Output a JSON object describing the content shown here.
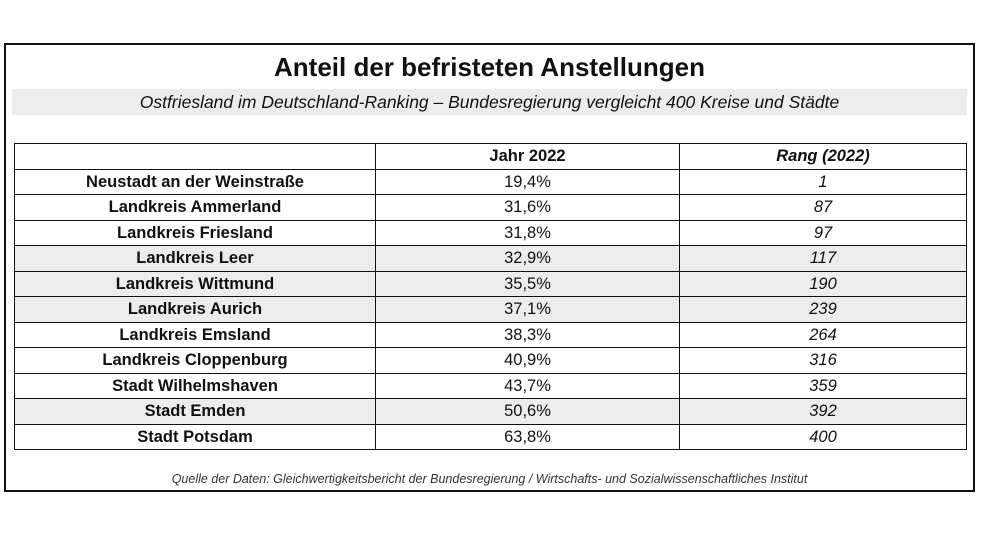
{
  "document": {
    "title": "Anteil der befristeten Anstellungen",
    "subtitle": "Ostfriesland im Deutschland-Ranking – Bundesregierung vergleicht 400 Kreise und Städte",
    "source": "Quelle der Daten: Gleichwertigkeitsbericht der Bundesregierung / Wirtschafts- und Sozialwissenschaftliches Institut"
  },
  "table": {
    "headers": [
      "",
      "Jahr 2022",
      "Rang (2022)"
    ],
    "shade_color": "#ececec",
    "rows": [
      {
        "name": "Neustadt an der Weinstraße",
        "value": "19,4%",
        "rank": "1",
        "shaded": false
      },
      {
        "name": "Landkreis Ammerland",
        "value": "31,6%",
        "rank": "87",
        "shaded": false
      },
      {
        "name": "Landkreis Friesland",
        "value": "31,8%",
        "rank": "97",
        "shaded": false
      },
      {
        "name": "Landkreis Leer",
        "value": "32,9%",
        "rank": "117",
        "shaded": true
      },
      {
        "name": "Landkreis Wittmund",
        "value": "35,5%",
        "rank": "190",
        "shaded": true
      },
      {
        "name": "Landkreis Aurich",
        "value": "37,1%",
        "rank": "239",
        "shaded": true
      },
      {
        "name": "Landkreis Emsland",
        "value": "38,3%",
        "rank": "264",
        "shaded": false
      },
      {
        "name": "Landkreis Cloppenburg",
        "value": "40,9%",
        "rank": "316",
        "shaded": false
      },
      {
        "name": "Stadt Wilhelmshaven",
        "value": "43,7%",
        "rank": "359",
        "shaded": false
      },
      {
        "name": "Stadt Emden",
        "value": "50,6%",
        "rank": "392",
        "shaded": true
      },
      {
        "name": "Stadt Potsdam",
        "value": "63,8%",
        "rank": "400",
        "shaded": false
      }
    ]
  }
}
